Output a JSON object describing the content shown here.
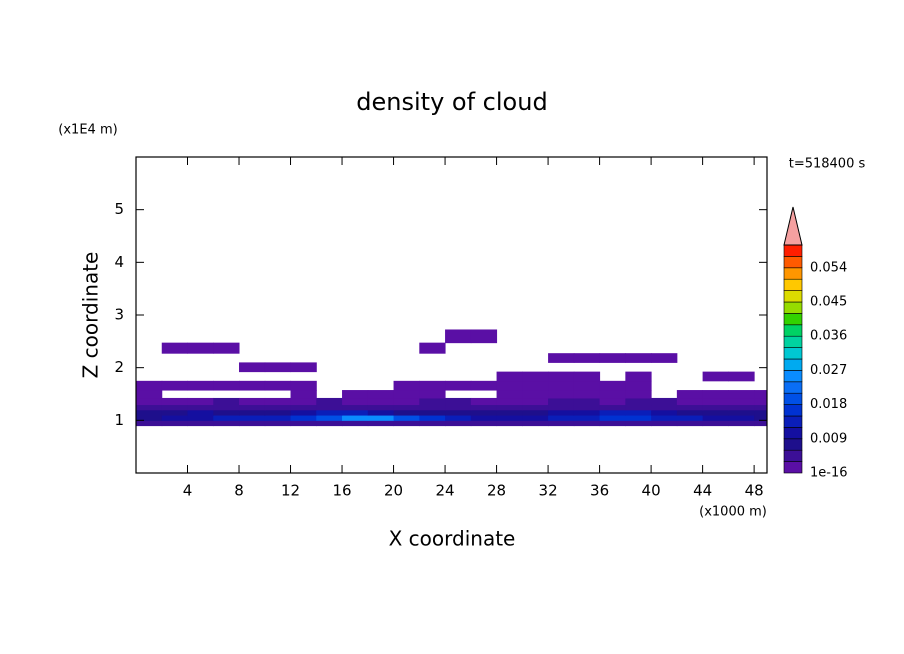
{
  "chart_data": {
    "type": "contour",
    "title": "density of cloud",
    "x_label": "X coordinate",
    "y_label": "Z coordinate",
    "x_unit": "(x1000 m)",
    "y_unit": "(x1E4 m)",
    "time_label": "t=518400 s",
    "xlim": [
      0,
      49
    ],
    "ylim": [
      0,
      6
    ],
    "xticks": [
      4,
      8,
      12,
      16,
      20,
      24,
      28,
      32,
      36,
      40,
      44,
      48
    ],
    "yticks": [
      1,
      2,
      3,
      4,
      5
    ],
    "x": [
      1,
      3,
      5,
      7,
      9,
      11,
      13,
      15,
      17,
      19,
      21,
      23,
      25,
      27,
      29,
      31,
      33,
      35,
      37,
      39,
      41,
      43,
      45,
      47,
      49
    ],
    "y": [
      0.95,
      1.05,
      1.15,
      1.25,
      1.35,
      1.5,
      1.65,
      1.85,
      2.0,
      2.2,
      2.35,
      2.6
    ],
    "z": [
      [
        0.003,
        0.003,
        0.003,
        0.003,
        0.003,
        0.003,
        0.003,
        0.003,
        0.003,
        0.003,
        0.003,
        0.003,
        0.003,
        0.003,
        0.003,
        0.003,
        0.003,
        0.003,
        0.003,
        0.003,
        0.003,
        0.003,
        0.003,
        0.003,
        0.003
      ],
      [
        0.009,
        0.01,
        0.011,
        0.012,
        0.012,
        0.013,
        0.015,
        0.02,
        0.024,
        0.026,
        0.02,
        0.015,
        0.012,
        0.01,
        0.01,
        0.011,
        0.012,
        0.013,
        0.015,
        0.016,
        0.014,
        0.012,
        0.011,
        0.01,
        0.009
      ],
      [
        0.008,
        0.009,
        0.01,
        0.009,
        0.008,
        0.009,
        0.011,
        0.013,
        0.012,
        0.01,
        0.009,
        0.008,
        0.007,
        0.007,
        0.008,
        0.009,
        0.01,
        0.011,
        0.012,
        0.013,
        0.011,
        0.009,
        0.008,
        0.007,
        0.008
      ],
      [
        0.004,
        0.004,
        0.005,
        0.004,
        0.004,
        0.004,
        0.005,
        0.005,
        0.004,
        0.004,
        0.004,
        0.004,
        0.004,
        0.004,
        0.005,
        0.004,
        0.004,
        0.004,
        0.004,
        0.005,
        0.005,
        0.004,
        0.004,
        0.004,
        0.004
      ],
      [
        0.002,
        0.002,
        0.002,
        0.003,
        0.002,
        0.002,
        0.002,
        0.003,
        0.002,
        0.002,
        0.002,
        0.003,
        0.003,
        0.002,
        0.002,
        0.002,
        0.003,
        0.003,
        0.002,
        0.003,
        0.003,
        0.002,
        0.002,
        0.002,
        0.002
      ],
      [
        0.001,
        null,
        null,
        null,
        null,
        null,
        0.001,
        null,
        0.001,
        0.001,
        0.001,
        0.001,
        null,
        null,
        0.001,
        0.001,
        0.001,
        0.001,
        0.001,
        0.001,
        null,
        0.001,
        0.001,
        0.001,
        0.001
      ],
      [
        0.001,
        0.001,
        0.001,
        0.001,
        0.001,
        0.001,
        0.001,
        null,
        null,
        null,
        0.001,
        0.001,
        0.001,
        0.001,
        0.001,
        0.001,
        0.001,
        0.001,
        0.001,
        0.001,
        null,
        null,
        null,
        null,
        null
      ],
      [
        null,
        null,
        null,
        null,
        null,
        null,
        null,
        null,
        null,
        null,
        null,
        null,
        null,
        null,
        0.001,
        0.001,
        0.001,
        0.001,
        null,
        0.001,
        null,
        null,
        0.001,
        0.001,
        null
      ],
      [
        null,
        null,
        null,
        null,
        0.001,
        0.001,
        0.001,
        null,
        null,
        null,
        null,
        null,
        null,
        null,
        null,
        null,
        null,
        null,
        null,
        null,
        null,
        null,
        null,
        null,
        null
      ],
      [
        null,
        null,
        null,
        null,
        null,
        null,
        null,
        null,
        null,
        null,
        null,
        null,
        null,
        null,
        null,
        null,
        0.001,
        0.001,
        0.001,
        0.001,
        0.001,
        null,
        null,
        null,
        null
      ],
      [
        null,
        0.001,
        0.001,
        0.001,
        null,
        null,
        null,
        null,
        null,
        null,
        null,
        0.001,
        null,
        null,
        null,
        null,
        null,
        null,
        null,
        null,
        null,
        null,
        null,
        null,
        null
      ],
      [
        null,
        null,
        null,
        null,
        null,
        null,
        null,
        null,
        null,
        null,
        null,
        null,
        0.001,
        0.001,
        null,
        null,
        null,
        null,
        null,
        null,
        null,
        null,
        null,
        null,
        null
      ]
    ],
    "clim": [
      0,
      0.06
    ],
    "colors": [
      "#5a0fa5",
      "#3c0f96",
      "#1e0f8c",
      "#140fa0",
      "#0a1eb9",
      "#0032d2",
      "#0050e6",
      "#0a6ef5",
      "#0a8cff",
      "#00aaf0",
      "#00c8d2",
      "#00d2a0",
      "#00d264",
      "#32d200",
      "#96dc00",
      "#dcdc00",
      "#ffc800",
      "#ff9600",
      "#ff5a00",
      "#ff1e00"
    ],
    "extend_color": "#f5a0a0",
    "cbar_ticks": [
      {
        "value": 1e-16,
        "label": "1e-16"
      },
      0.009,
      0.018,
      0.027,
      0.036,
      0.045,
      0.054
    ]
  }
}
